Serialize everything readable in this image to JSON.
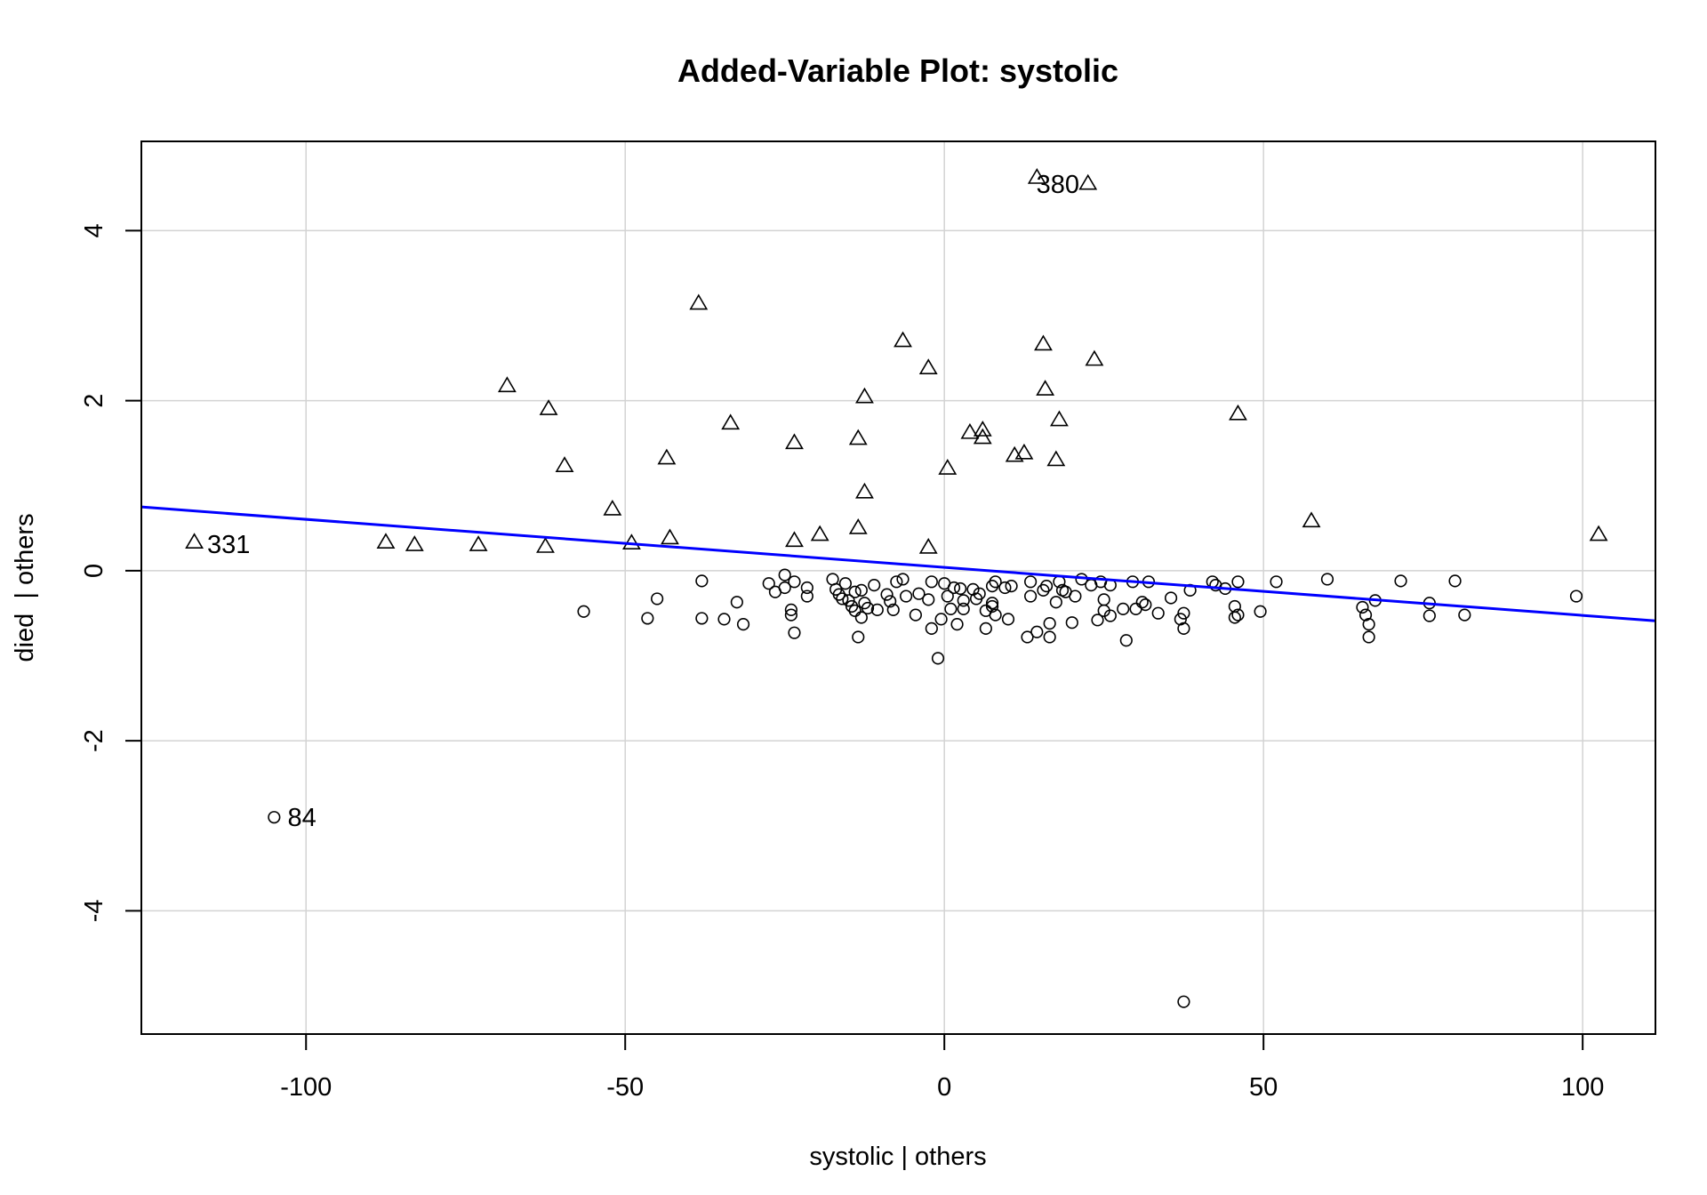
{
  "chart_data": {
    "type": "scatter",
    "title": "Added-Variable Plot: systolic",
    "xlabel": "systolic | others",
    "ylabel": "died  | others",
    "xlim": [
      -125.8,
      111.4
    ],
    "ylim": [
      -5.45,
      5.05
    ],
    "x_ticks": [
      -100,
      -50,
      0,
      50,
      100
    ],
    "x_tick_labels": [
      "-100",
      "-50",
      "0",
      "50",
      "100"
    ],
    "y_ticks": [
      -4,
      -2,
      0,
      2,
      4
    ],
    "y_tick_labels": [
      "-4",
      "-2",
      "0",
      "2",
      "4"
    ],
    "grid": true,
    "regression_line": {
      "color": "#0000ff",
      "x": [
        -125.8,
        111.4
      ],
      "y": [
        0.75,
        -0.59
      ]
    },
    "series": [
      {
        "marker": "triangle",
        "points": [
          [
            14.5,
            4.62
          ],
          [
            22.5,
            4.55
          ],
          [
            -38.5,
            3.14
          ],
          [
            -6.5,
            2.7
          ],
          [
            15.5,
            2.66
          ],
          [
            -2.5,
            2.38
          ],
          [
            23.5,
            2.48
          ],
          [
            -68.5,
            2.17
          ],
          [
            15.8,
            2.13
          ],
          [
            -12.5,
            2.04
          ],
          [
            -62.0,
            1.9
          ],
          [
            46.0,
            1.84
          ],
          [
            -33.5,
            1.73
          ],
          [
            18.0,
            1.77
          ],
          [
            4.0,
            1.62
          ],
          [
            6.0,
            1.65
          ],
          [
            6.0,
            1.56
          ],
          [
            -13.5,
            1.55
          ],
          [
            -23.5,
            1.5
          ],
          [
            11.0,
            1.35
          ],
          [
            12.5,
            1.38
          ],
          [
            -43.5,
            1.32
          ],
          [
            17.5,
            1.3
          ],
          [
            -59.5,
            1.23
          ],
          [
            0.5,
            1.2
          ],
          [
            -12.5,
            0.92
          ],
          [
            -52.0,
            0.72
          ],
          [
            57.5,
            0.58
          ],
          [
            -13.5,
            0.5
          ],
          [
            -19.5,
            0.42
          ],
          [
            102.5,
            0.42
          ],
          [
            -43.0,
            0.38
          ],
          [
            -23.5,
            0.35
          ],
          [
            -117.5,
            0.33
          ],
          [
            -87.5,
            0.33
          ],
          [
            -83.0,
            0.3
          ],
          [
            -73.0,
            0.3
          ],
          [
            -49.0,
            0.32
          ],
          [
            -62.5,
            0.28
          ],
          [
            -2.5,
            0.27
          ]
        ]
      },
      {
        "marker": "circle",
        "points": [
          [
            -105.0,
            -2.9
          ],
          [
            37.5,
            -5.07
          ],
          [
            -1.0,
            -1.03
          ],
          [
            28.5,
            -0.82
          ],
          [
            13.0,
            -0.78
          ],
          [
            16.5,
            -0.78
          ],
          [
            -23.5,
            -0.73
          ],
          [
            -13.5,
            -0.78
          ],
          [
            66.5,
            -0.78
          ],
          [
            -2.0,
            -0.68
          ],
          [
            6.5,
            -0.68
          ],
          [
            37.5,
            -0.68
          ],
          [
            14.5,
            -0.72
          ],
          [
            -31.5,
            -0.63
          ],
          [
            -34.5,
            -0.57
          ],
          [
            -38.0,
            -0.56
          ],
          [
            -46.5,
            -0.56
          ],
          [
            -0.5,
            -0.57
          ],
          [
            2.0,
            -0.63
          ],
          [
            16.5,
            -0.62
          ],
          [
            20.0,
            -0.61
          ],
          [
            24.0,
            -0.58
          ],
          [
            26.0,
            -0.53
          ],
          [
            33.5,
            -0.5
          ],
          [
            37.5,
            -0.5
          ],
          [
            45.5,
            -0.55
          ],
          [
            46.0,
            -0.52
          ],
          [
            49.5,
            -0.48
          ],
          [
            66.0,
            -0.52
          ],
          [
            66.5,
            -0.63
          ],
          [
            76.0,
            -0.53
          ],
          [
            81.5,
            -0.52
          ],
          [
            -56.5,
            -0.48
          ],
          [
            -24.0,
            -0.52
          ],
          [
            -24.0,
            -0.46
          ],
          [
            -14.0,
            -0.47
          ],
          [
            -10.5,
            -0.46
          ],
          [
            -8.0,
            -0.46
          ],
          [
            -4.5,
            -0.52
          ],
          [
            1.0,
            -0.45
          ],
          [
            3.0,
            -0.45
          ],
          [
            8.0,
            -0.52
          ],
          [
            10.0,
            -0.57
          ],
          [
            25.0,
            -0.47
          ],
          [
            30.0,
            -0.45
          ],
          [
            37.0,
            -0.57
          ],
          [
            45.5,
            -0.42
          ],
          [
            65.5,
            -0.43
          ],
          [
            -45.0,
            -0.33
          ],
          [
            -32.5,
            -0.37
          ],
          [
            -21.5,
            -0.3
          ],
          [
            -16.0,
            -0.33
          ],
          [
            -12.5,
            -0.38
          ],
          [
            -8.5,
            -0.36
          ],
          [
            -6.0,
            -0.3
          ],
          [
            -4.0,
            -0.27
          ],
          [
            -2.5,
            -0.34
          ],
          [
            0.5,
            -0.3
          ],
          [
            3.0,
            -0.35
          ],
          [
            5.0,
            -0.33
          ],
          [
            7.5,
            -0.38
          ],
          [
            13.5,
            -0.3
          ],
          [
            17.5,
            -0.37
          ],
          [
            20.5,
            -0.3
          ],
          [
            25.0,
            -0.34
          ],
          [
            31.0,
            -0.37
          ],
          [
            35.5,
            -0.32
          ],
          [
            38.5,
            -0.23
          ],
          [
            67.5,
            -0.35
          ],
          [
            76.0,
            -0.38
          ],
          [
            99.0,
            -0.3
          ],
          [
            -27.5,
            -0.15
          ],
          [
            -26.5,
            -0.25
          ],
          [
            -25.0,
            -0.2
          ],
          [
            -23.5,
            -0.13
          ],
          [
            -21.5,
            -0.2
          ],
          [
            -17.5,
            -0.1
          ],
          [
            -15.5,
            -0.15
          ],
          [
            -13.0,
            -0.23
          ],
          [
            -11.0,
            -0.17
          ],
          [
            -7.5,
            -0.13
          ],
          [
            -6.5,
            -0.1
          ],
          [
            -2.0,
            -0.13
          ],
          [
            0.0,
            -0.15
          ],
          [
            2.5,
            -0.21
          ],
          [
            4.5,
            -0.22
          ],
          [
            7.5,
            -0.18
          ],
          [
            8.0,
            -0.13
          ],
          [
            10.5,
            -0.18
          ],
          [
            13.5,
            -0.13
          ],
          [
            16.0,
            -0.18
          ],
          [
            18.0,
            -0.13
          ],
          [
            21.5,
            -0.1
          ],
          [
            24.5,
            -0.13
          ],
          [
            26.0,
            -0.17
          ],
          [
            29.5,
            -0.13
          ],
          [
            32.0,
            -0.13
          ],
          [
            42.0,
            -0.13
          ],
          [
            46.0,
            -0.13
          ],
          [
            52.0,
            -0.13
          ],
          [
            60.0,
            -0.1
          ],
          [
            71.5,
            -0.12
          ],
          [
            80.0,
            -0.12
          ],
          [
            -25.0,
            -0.05
          ],
          [
            -38.0,
            -0.12
          ],
          [
            -17.0,
            -0.22
          ],
          [
            -14.0,
            -0.25
          ],
          [
            -9.0,
            -0.28
          ],
          [
            1.5,
            -0.2
          ],
          [
            5.5,
            -0.27
          ],
          [
            9.5,
            -0.2
          ],
          [
            15.5,
            -0.23
          ],
          [
            19.0,
            -0.25
          ],
          [
            23.0,
            -0.17
          ],
          [
            -16.5,
            -0.28
          ],
          [
            -15.0,
            -0.35
          ],
          [
            -14.5,
            -0.42
          ],
          [
            -13.0,
            -0.55
          ],
          [
            -12.0,
            -0.44
          ],
          [
            6.5,
            -0.47
          ],
          [
            7.5,
            -0.42
          ],
          [
            18.5,
            -0.23
          ],
          [
            28.0,
            -0.45
          ],
          [
            31.5,
            -0.4
          ],
          [
            42.5,
            -0.17
          ],
          [
            44.0,
            -0.21
          ]
        ]
      }
    ],
    "annotations": [
      {
        "text": "380",
        "x": 13.3,
        "y": 4.55
      },
      {
        "text": "331",
        "x": -116.6,
        "y": 0.31
      },
      {
        "text": "84",
        "x": -104.0,
        "y": -2.9
      }
    ]
  }
}
